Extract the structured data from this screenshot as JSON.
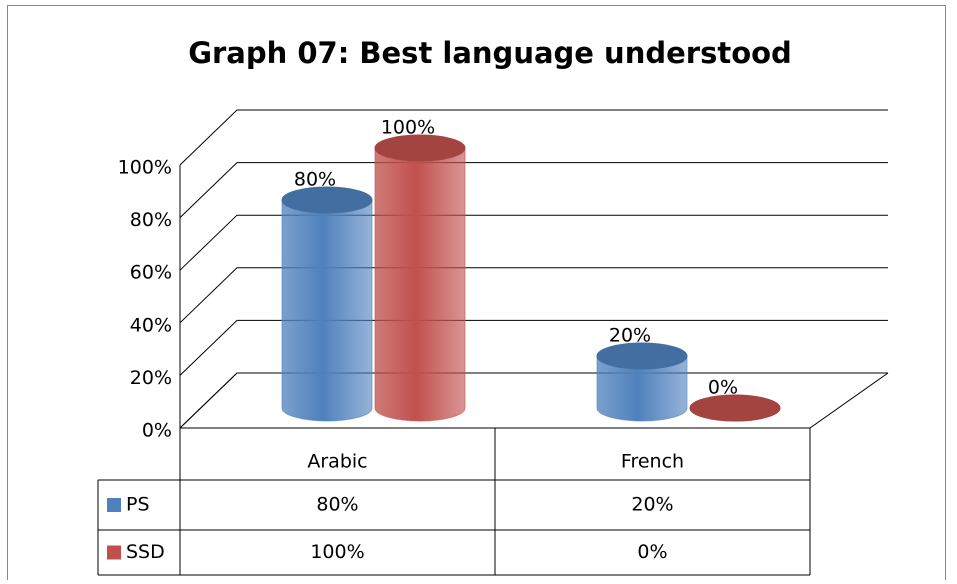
{
  "chart_data": {
    "type": "cylinder3d",
    "title": "Graph 07: Best language understood",
    "categories": [
      "Arabic",
      "French"
    ],
    "series": [
      {
        "name": "PS",
        "color": "#4f81bd",
        "values": [
          80,
          20
        ],
        "value_labels": [
          "80%",
          "20%"
        ]
      },
      {
        "name": "SSD",
        "color": "#c0504d",
        "values": [
          100,
          0
        ],
        "value_labels": [
          "100%",
          "0%"
        ]
      }
    ],
    "ylim": [
      0,
      100
    ],
    "yticks": [
      {
        "value": 0,
        "label": "0%"
      },
      {
        "value": 20,
        "label": "20%"
      },
      {
        "value": 40,
        "label": "40%"
      },
      {
        "value": 60,
        "label": "60%"
      },
      {
        "value": 80,
        "label": "80%"
      },
      {
        "value": 100,
        "label": "100%"
      }
    ],
    "grid": true,
    "data_table": true
  }
}
